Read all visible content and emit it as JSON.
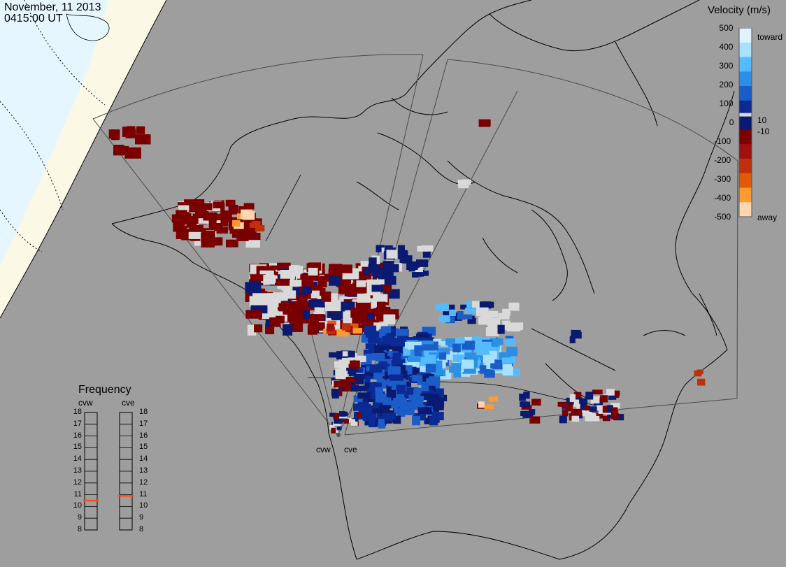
{
  "header": {
    "date": "November, 11 2013",
    "time": "0415:00 UT"
  },
  "colorbar": {
    "title": "Velocity (m/s)",
    "ticks": [
      "500",
      "400",
      "300",
      "200",
      "100",
      "10",
      "0",
      "-10",
      "-100",
      "-200",
      "-300",
      "-400",
      "-500"
    ],
    "toward_label": "toward",
    "away_label": "away",
    "colors": [
      "#dff3ff",
      "#a8e0ff",
      "#55bbff",
      "#2b8fe6",
      "#1a5cc8",
      "#0b2a95",
      "#0a1a70",
      "#7a0000",
      "#a11010",
      "#c0300a",
      "#e05a0a",
      "#ff9a30",
      "#ffd6b0"
    ],
    "neutral_color": "#d9d9d9"
  },
  "frequency_panel": {
    "title": "Frequency",
    "radars": [
      {
        "name": "cvw",
        "frequency_mhz": 10.5
      },
      {
        "name": "cve",
        "frequency_mhz": 10.9
      }
    ],
    "scale": [
      "18",
      "17",
      "16",
      "15",
      "14",
      "13",
      "12",
      "11",
      "10",
      "9",
      "8"
    ],
    "marker_color": "#ff4a1a"
  },
  "radar_sites": [
    "cvw",
    "cve"
  ],
  "map": {
    "ocean_color": "#e6f6ff",
    "night_color": "#9e9e9e",
    "day_color": "#fbf9e6",
    "coast_color": "#000000",
    "fov_color": "#4a4a4a"
  }
}
